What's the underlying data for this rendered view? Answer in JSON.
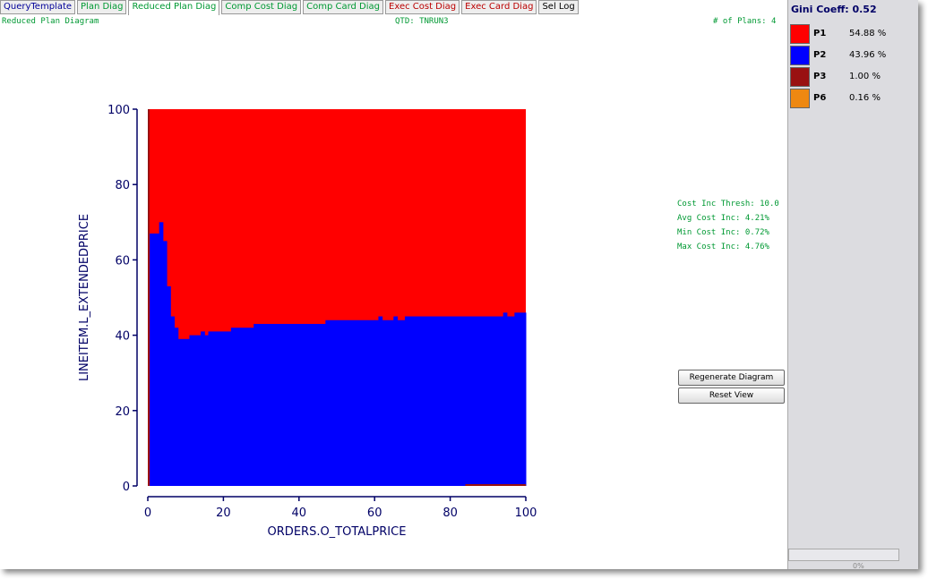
{
  "tabs": [
    "QueryTemplate",
    "Plan Diag",
    "Reduced Plan Diag",
    "Comp Cost Diag",
    "Comp Card Diag",
    "Exec Cost Diag",
    "Exec Card Diag",
    "Sel Log"
  ],
  "header": {
    "left": "Reduced Plan Diagram",
    "center": "QTD: TNRUN3",
    "right": "# of Plans: 4"
  },
  "chart_data": {
    "type": "step-area",
    "xlabel": "ORDERS.O_TOTALPRICE",
    "ylabel": "LINEITEM.L_EXTENDEDPRICE",
    "background_color": "#ff0000",
    "color": "#0000ff",
    "x": [
      0.5,
      3,
      4,
      5,
      6,
      7,
      8,
      11,
      14,
      15,
      16,
      22,
      28,
      45,
      47,
      60,
      61,
      62,
      65,
      66,
      68,
      69,
      94,
      95,
      97,
      98
    ],
    "values": [
      67,
      70,
      65,
      53,
      45,
      42,
      39,
      40,
      41,
      40,
      41,
      42,
      43,
      43,
      44,
      44,
      45,
      44,
      45,
      44,
      45,
      45,
      46,
      45,
      46,
      46
    ],
    "xlim": [
      0,
      100
    ],
    "ylim": [
      0,
      100
    ],
    "xticks": [
      0,
      20,
      40,
      60,
      80,
      100
    ],
    "yticks": [
      0,
      20,
      40,
      60,
      80,
      100
    ]
  },
  "stats": [
    "Cost Inc Thresh: 10.0",
    "Avg Cost Inc: 4.21%",
    "Min Cost Inc: 0.72%",
    "Max Cost Inc: 4.76%"
  ],
  "buttons": [
    "Regenerate Diagram",
    "Reset View"
  ],
  "legend": {
    "title": "Gini Coeff: 0.52",
    "plans": [
      {
        "name": "P1",
        "color": "#ff0000",
        "share": "54.88 %"
      },
      {
        "name": "P2",
        "color": "#0000ff",
        "share": "43.96 %"
      },
      {
        "name": "P3",
        "color": "#991111",
        "share": "1.00 %"
      },
      {
        "name": "P6",
        "color": "#ee8811",
        "share": "0.16 %"
      }
    ]
  },
  "status": "0%"
}
